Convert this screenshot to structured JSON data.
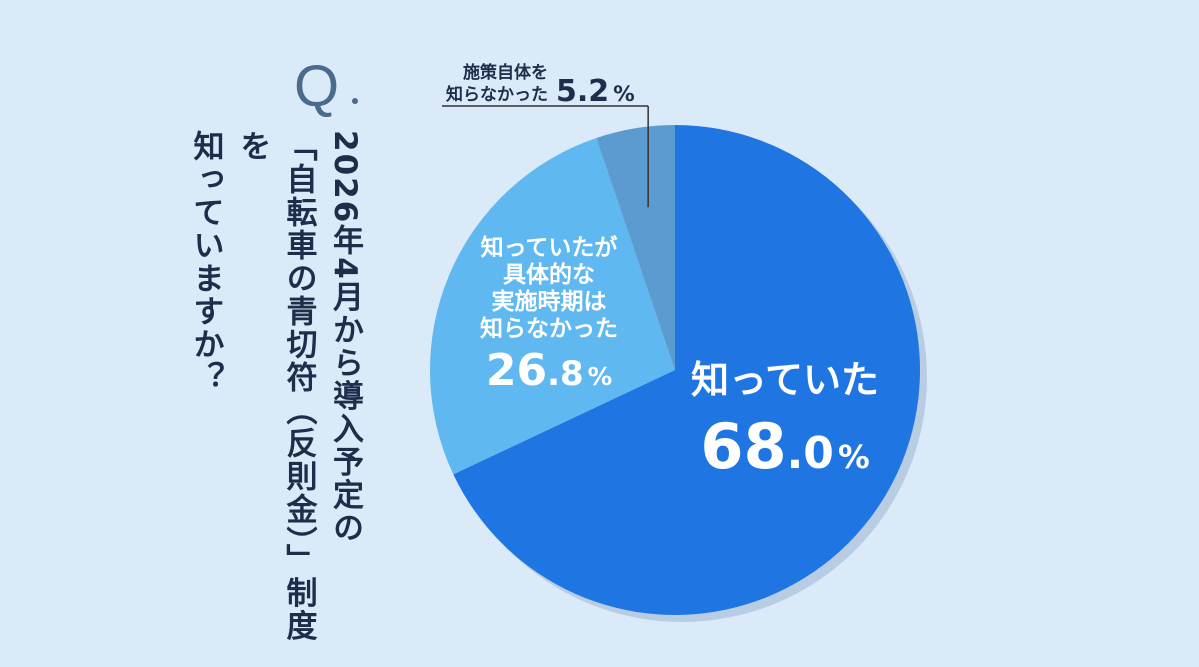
{
  "question": {
    "mark": "Q",
    "lines": [
      "2026年4月から導入予定の",
      "「自転車の青切符（反則金）」制度を",
      "知っていますか？"
    ]
  },
  "chart_data": {
    "type": "pie",
    "slices": [
      {
        "label": "知っていた",
        "value": 68.0,
        "display": "68.0",
        "color": "#1f76e3"
      },
      {
        "label_lines": [
          "知っていたが",
          "具体的な",
          "実施時期は",
          "知らなかった"
        ],
        "value": 26.8,
        "display": "26.8",
        "color": "#60b8f0"
      },
      {
        "label_lines": [
          "施策自体を",
          "知らなかった"
        ],
        "value": 5.2,
        "display": "5.2",
        "color": "#5b9bd0"
      }
    ],
    "unit": "%",
    "colors": {
      "label_dark": "#1e2d4a",
      "label_light": "#ffffff",
      "shadow": "#b8cde4"
    }
  }
}
